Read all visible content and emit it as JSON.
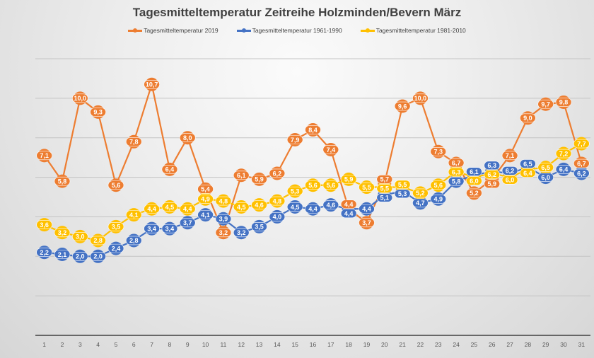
{
  "chart_data": {
    "type": "line",
    "title": "Tagesmitteltemperatur Zeitreihe Holzminden/Bevern März",
    "xlabel": "",
    "ylabel": "",
    "x": [
      1,
      2,
      3,
      4,
      5,
      6,
      7,
      8,
      9,
      10,
      11,
      12,
      13,
      14,
      15,
      16,
      17,
      18,
      19,
      20,
      21,
      22,
      23,
      24,
      25,
      26,
      27,
      28,
      29,
      30,
      31
    ],
    "ylim": [
      -2,
      12
    ],
    "y_gridlines": [
      -2,
      0,
      2,
      4,
      6,
      8,
      10,
      12
    ],
    "y_tick_labels_shown": false,
    "grid": true,
    "legend": "top",
    "data_labels": true,
    "series": [
      {
        "name": "Tagesmitteltemperatur 2019",
        "color": "#ED7D31",
        "values": [
          7.1,
          5.8,
          10.0,
          9.3,
          5.6,
          7.8,
          10.7,
          6.4,
          8.0,
          5.4,
          3.2,
          6.1,
          5.9,
          6.2,
          7.9,
          8.4,
          7.4,
          4.4,
          3.7,
          5.7,
          9.6,
          10.0,
          7.3,
          6.7,
          5.2,
          5.9,
          7.1,
          9.0,
          9.7,
          9.8,
          6.7
        ]
      },
      {
        "name": "Tagesmitteltemperatur 1961-1990",
        "color": "#4472C4",
        "values": [
          2.2,
          2.1,
          2.0,
          2.0,
          2.4,
          2.8,
          3.4,
          3.4,
          3.7,
          4.1,
          3.9,
          3.2,
          3.5,
          4.0,
          4.5,
          4.4,
          4.6,
          4.4,
          4.4,
          5.1,
          5.3,
          4.7,
          4.9,
          5.8,
          6.1,
          6.3,
          6.2,
          6.5,
          6.0,
          6.4,
          6.2
        ]
      },
      {
        "name": "Tagesmitteltemperatur 1981-2010",
        "color": "#FFC000",
        "values": [
          3.6,
          3.2,
          3.0,
          2.8,
          3.5,
          4.1,
          4.4,
          4.5,
          4.4,
          4.9,
          4.8,
          4.5,
          4.6,
          4.8,
          5.3,
          5.6,
          5.6,
          5.9,
          5.5,
          5.5,
          5.5,
          5.2,
          5.6,
          6.3,
          6.0,
          6.2,
          6.0,
          6.4,
          6.5,
          7.2,
          7.7
        ]
      }
    ]
  }
}
